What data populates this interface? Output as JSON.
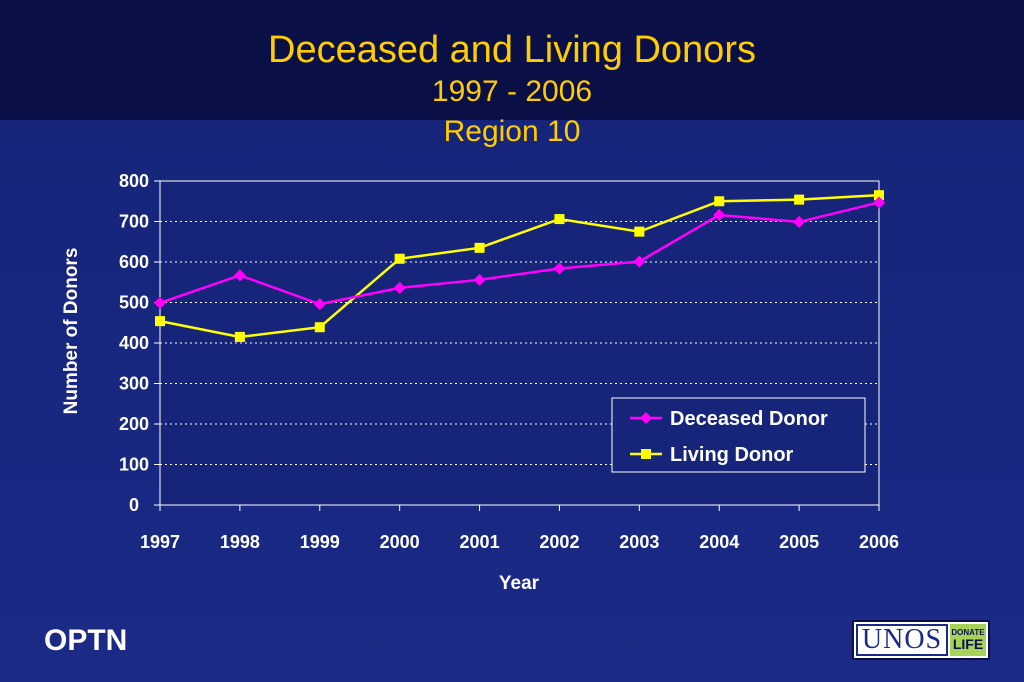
{
  "title": {
    "main": "Deceased and Living Donors",
    "years": "1997 - 2006",
    "region": "Region 10"
  },
  "chart_data": {
    "type": "line",
    "x": [
      "1997",
      "1998",
      "1999",
      "2000",
      "2001",
      "2002",
      "2003",
      "2004",
      "2005",
      "2006"
    ],
    "xlabel": "Year",
    "ylabel": "Number of Donors",
    "ylim": [
      0,
      800
    ],
    "yticks": [
      0,
      100,
      200,
      300,
      400,
      500,
      600,
      700,
      800
    ],
    "grid": "horizontal dotted",
    "legend_position": "lower-right",
    "series": [
      {
        "name": "Deceased Donor",
        "color": "#ff00ff",
        "marker": "diamond",
        "values": [
          499,
          567,
          496,
          536,
          556,
          584,
          601,
          716,
          699,
          747
        ]
      },
      {
        "name": "Living Donor",
        "color": "#ffff00",
        "marker": "square",
        "values": [
          454,
          415,
          439,
          608,
          635,
          706,
          675,
          750,
          754,
          765
        ]
      }
    ]
  },
  "footer": {
    "org": "OPTN",
    "logo_text": "UNOS",
    "logo_badge_top": "DONATE",
    "logo_badge_bottom": "LIFE"
  }
}
